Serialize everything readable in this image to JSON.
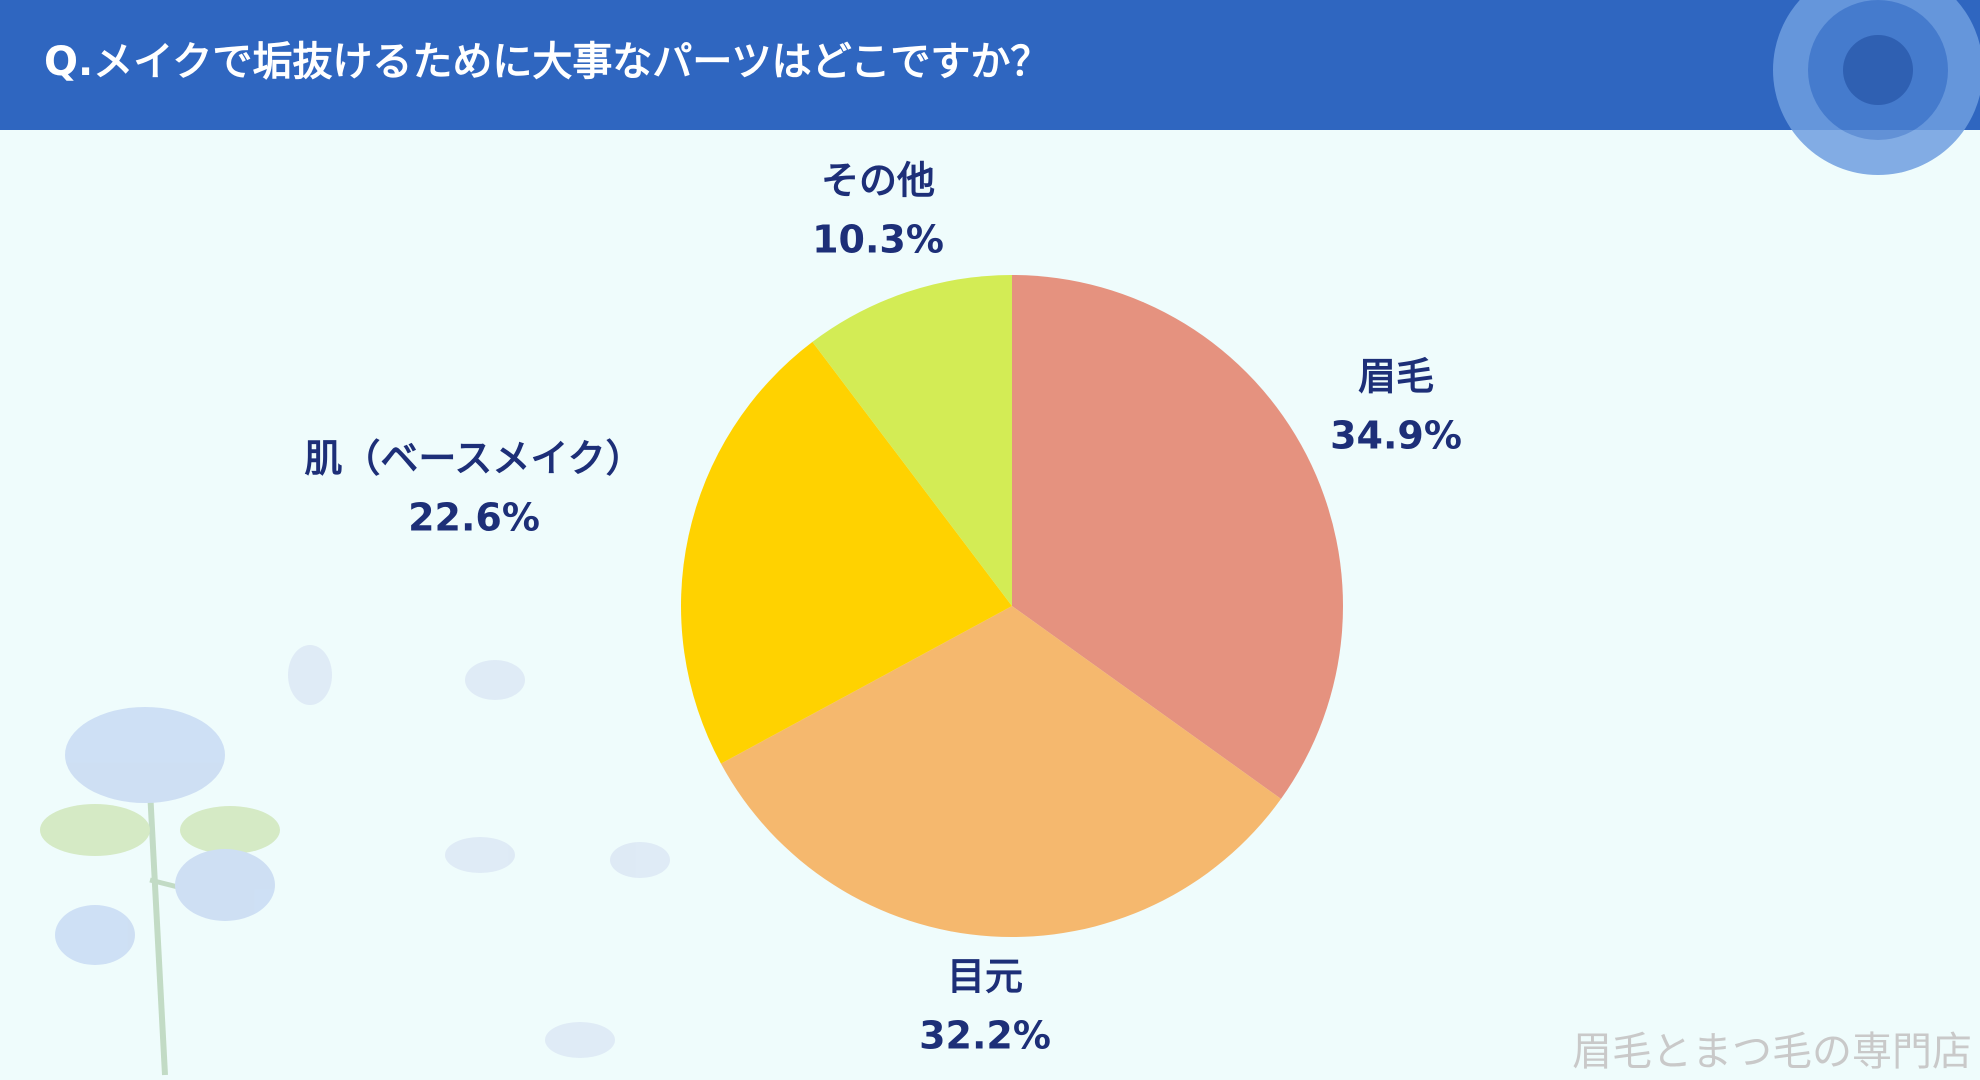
{
  "chart_data": {
    "type": "pie",
    "title": "Q.メイクで垢抜けるために大事なパーツはどこですか？",
    "categories": [
      "眉毛",
      "目元",
      "肌（ベースメイク）",
      "その他"
    ],
    "values": [
      34.9,
      32.2,
      22.6,
      10.3
    ],
    "value_labels": [
      "34.9%",
      "32.2%",
      "22.6%",
      "10.3%"
    ],
    "colors": [
      "#e5927f",
      "#f5b86e",
      "#ffd200",
      "#d3ec55"
    ]
  },
  "watermark": "眉毛とまつ毛の専門店"
}
